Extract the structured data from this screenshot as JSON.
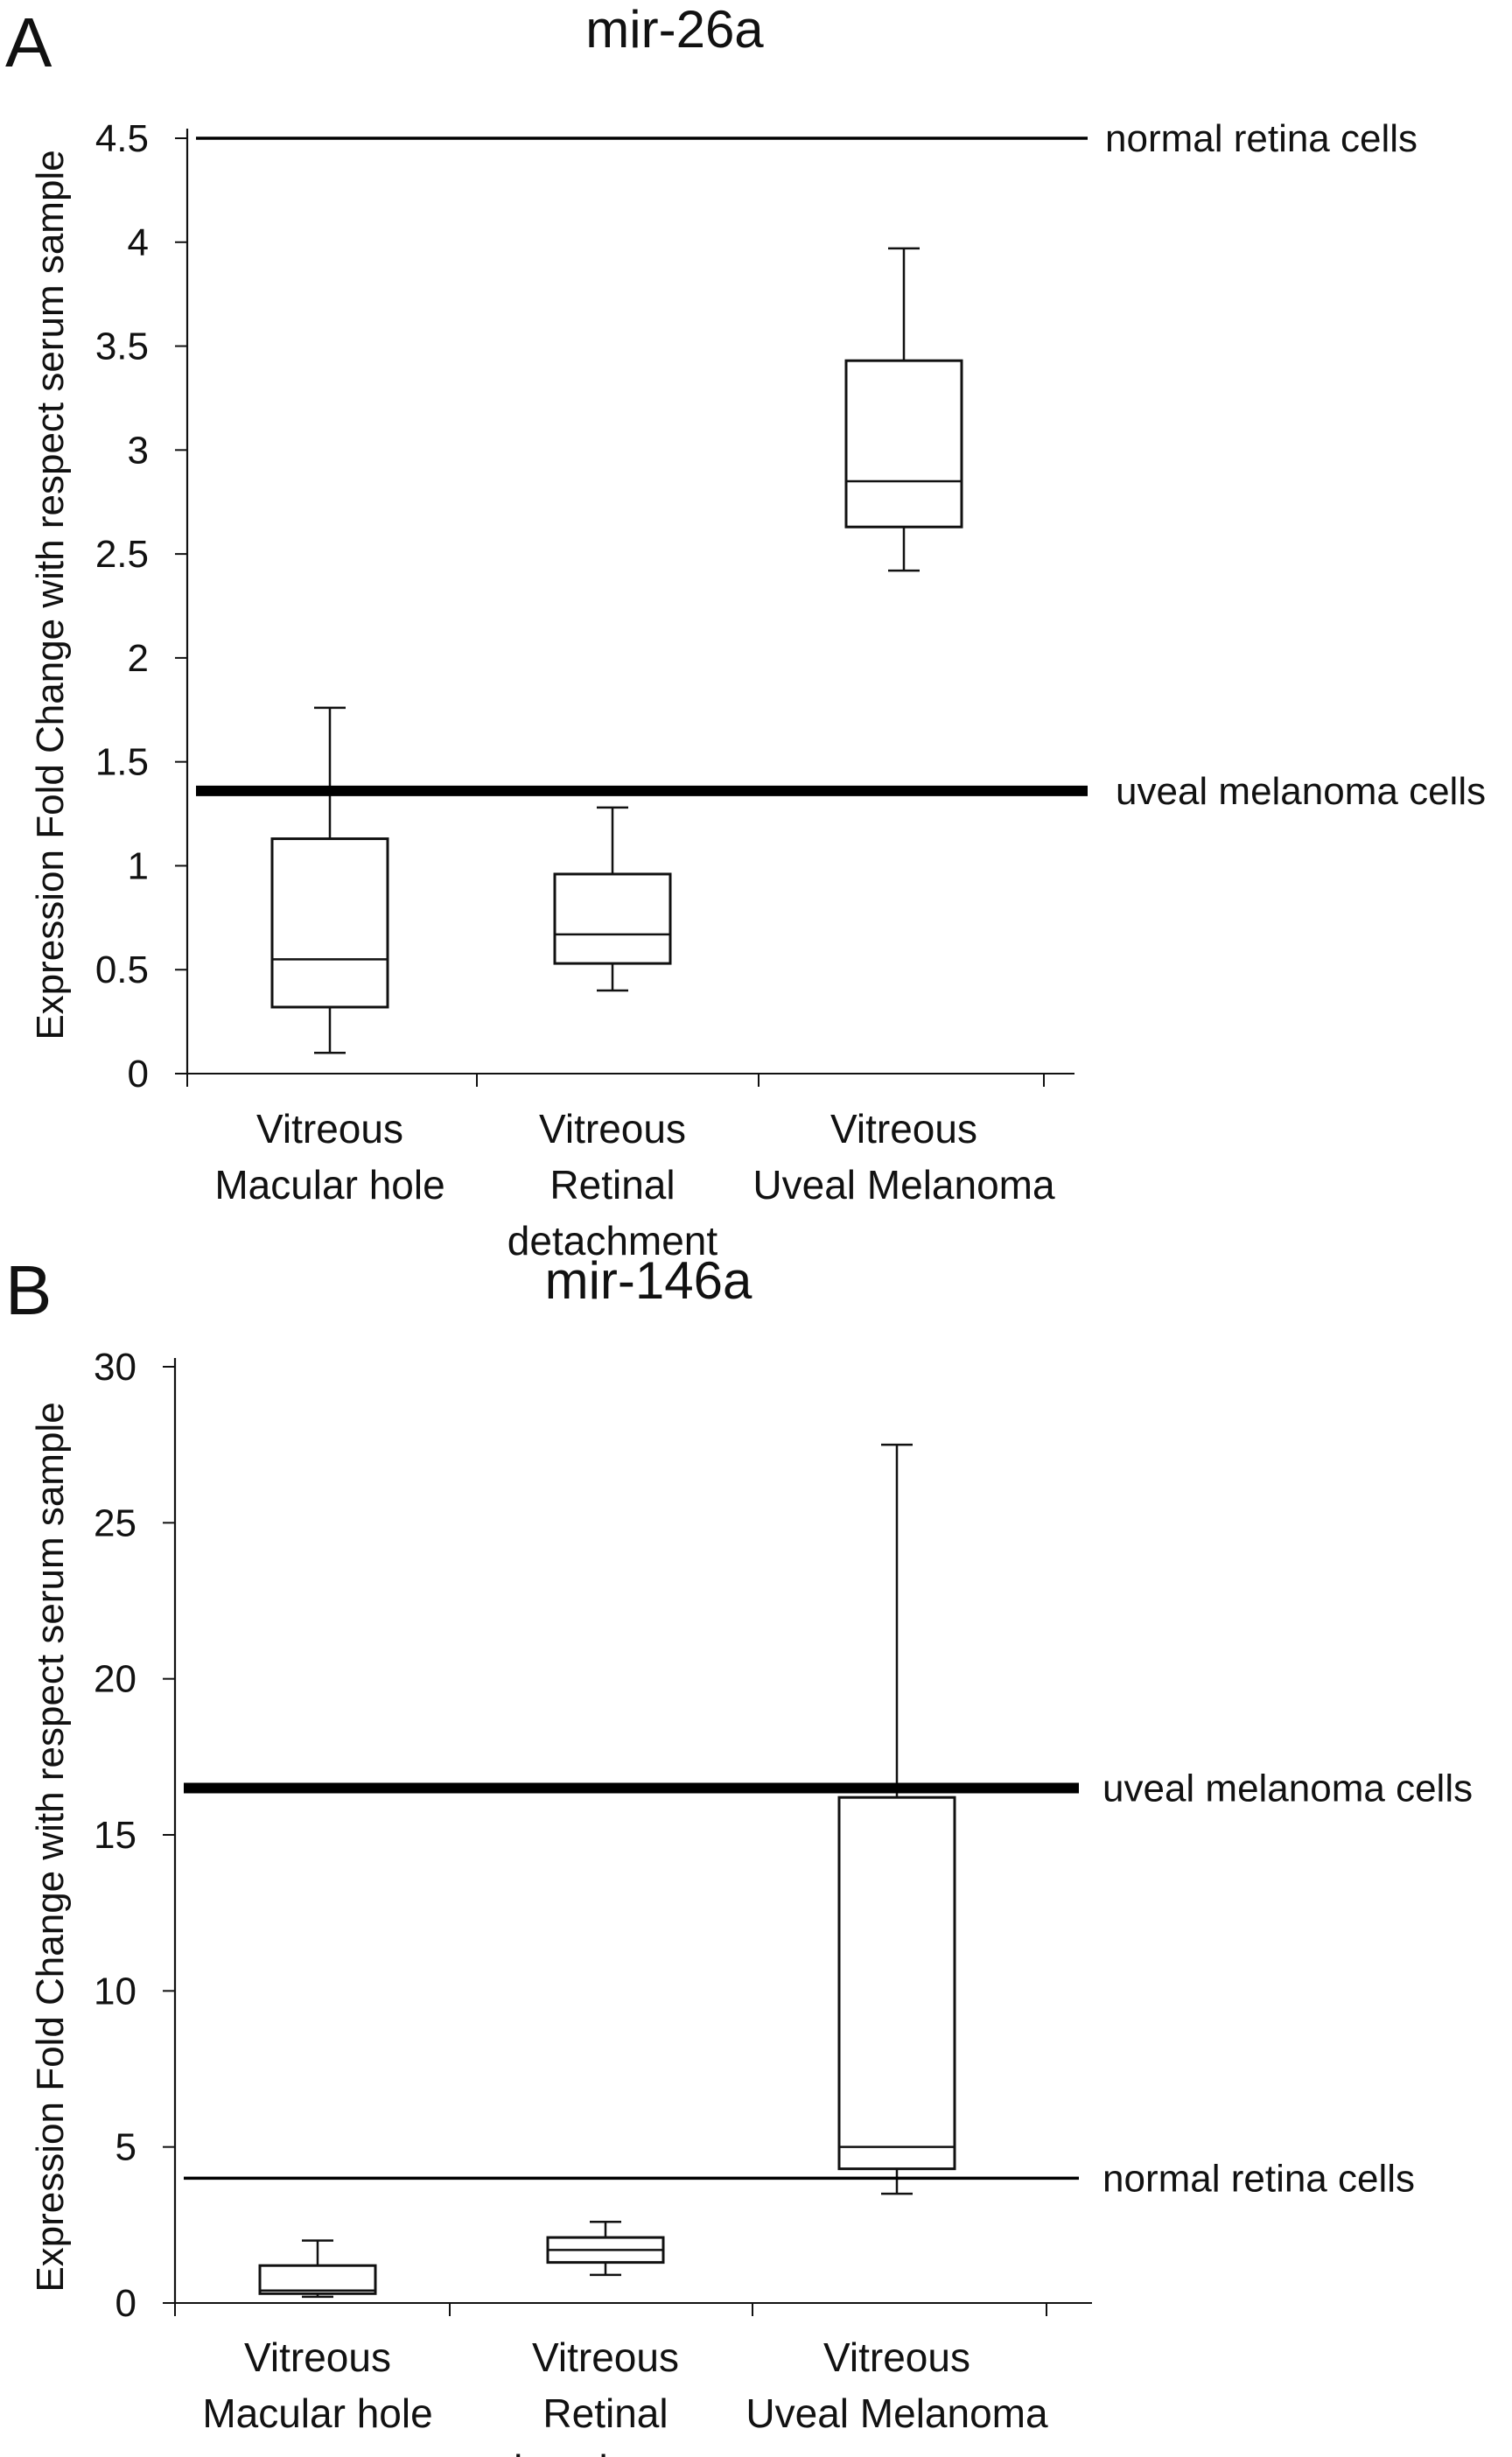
{
  "chart_data": [
    {
      "type": "box",
      "panel_label": "A",
      "title": "mir-26a",
      "ylabel": "Expression Fold Change with respect serum sample",
      "ylim": [
        0,
        4.5
      ],
      "yticks": [
        0,
        0.5,
        1,
        1.5,
        2,
        2.5,
        3,
        3.5,
        4,
        4.5
      ],
      "categories": [
        [
          "Vitreous",
          "Macular hole"
        ],
        [
          "Vitreous",
          "Retinal",
          "detachment"
        ],
        [
          "Vitreous",
          "Uveal Melanoma"
        ]
      ],
      "boxes": [
        {
          "min": 0.1,
          "q1": 0.32,
          "median": 0.55,
          "q3": 1.13,
          "max": 1.76
        },
        {
          "min": 0.4,
          "q1": 0.53,
          "median": 0.67,
          "q3": 0.96,
          "max": 1.28
        },
        {
          "min": 2.42,
          "q1": 2.63,
          "median": 2.85,
          "q3": 3.43,
          "max": 3.97
        }
      ],
      "reference_lines": [
        {
          "label": "normal retina cells",
          "value": 4.5,
          "weight": "thin"
        },
        {
          "label": "uveal melanoma cells",
          "value": 1.36,
          "weight": "thick"
        }
      ]
    },
    {
      "type": "box",
      "panel_label": "B",
      "title": "mir-146a",
      "ylabel": "Expression Fold Change with respect serum sample",
      "ylim": [
        0,
        30
      ],
      "yticks": [
        0,
        5,
        10,
        15,
        20,
        25,
        30
      ],
      "categories": [
        [
          "Vitreous",
          "Macular hole"
        ],
        [
          "Vitreous",
          "Retinal",
          "detachment"
        ],
        [
          "Vitreous",
          "Uveal Melanoma"
        ]
      ],
      "boxes": [
        {
          "min": 0.2,
          "q1": 0.3,
          "median": 0.4,
          "q3": 1.2,
          "max": 2.0
        },
        {
          "min": 0.9,
          "q1": 1.3,
          "median": 1.7,
          "q3": 2.1,
          "max": 2.6
        },
        {
          "min": 3.5,
          "q1": 4.3,
          "median": 5.0,
          "q3": 16.2,
          "max": 27.5
        }
      ],
      "reference_lines": [
        {
          "label": "uveal melanoma cells",
          "value": 16.5,
          "weight": "thick"
        },
        {
          "label": "normal retina cells",
          "value": 4.0,
          "weight": "thin"
        }
      ]
    }
  ]
}
